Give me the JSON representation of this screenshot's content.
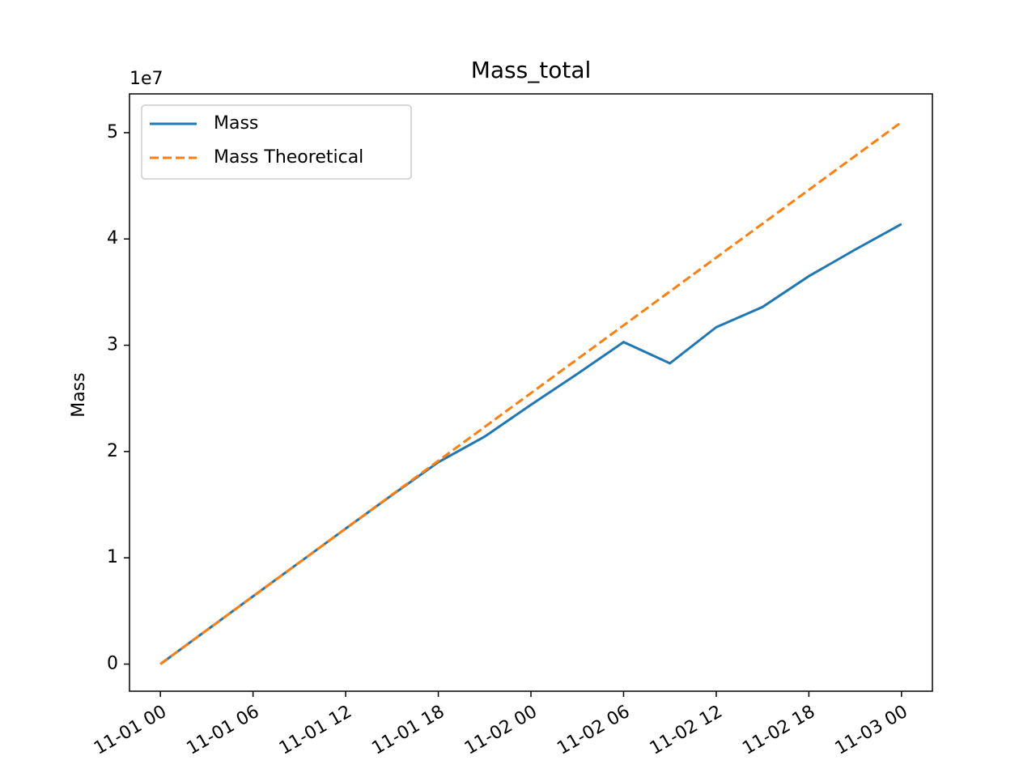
{
  "chart_data": {
    "type": "line",
    "title": "Mass_total",
    "y_label": "Mass",
    "y_offset_label": "1e7",
    "x": [
      "11-01 00",
      "11-01 03",
      "11-01 06",
      "11-01 09",
      "11-01 12",
      "11-01 15",
      "11-01 18",
      "11-01 21",
      "11-02 00",
      "11-02 03",
      "11-02 06",
      "11-02 09",
      "11-02 12",
      "11-02 15",
      "11-02 18",
      "11-02 21",
      "11-03 00"
    ],
    "series": [
      {
        "name": "Mass",
        "color": "#1f77b4",
        "style": "solid",
        "values": [
          0,
          3190000,
          6380000,
          9560000,
          12750000,
          15900000,
          19000000,
          21400000,
          24400000,
          27300000,
          30300000,
          28300000,
          31700000,
          33600000,
          36500000,
          39000000,
          41400000
        ]
      },
      {
        "name": "Mass Theoretical",
        "color": "#ff7f0e",
        "style": "dashed",
        "values": [
          0,
          3187500,
          6375000,
          9562500,
          12750000,
          15937500,
          19125000,
          22312500,
          25500000,
          28687500,
          31875000,
          35062500,
          38250000,
          41437500,
          44625000,
          47812500,
          51000000
        ]
      }
    ],
    "xlim": [
      "10-31 22",
      "11-03 02"
    ],
    "xticks": [
      "11-01 00",
      "11-01 06",
      "11-01 12",
      "11-01 18",
      "11-02 00",
      "11-02 06",
      "11-02 12",
      "11-02 18",
      "11-03 00"
    ],
    "ylim": [
      -2550000,
      53650000
    ],
    "yticks": [
      {
        "value": 0,
        "label": "0"
      },
      {
        "value": 10000000,
        "label": "1"
      },
      {
        "value": 20000000,
        "label": "2"
      },
      {
        "value": 30000000,
        "label": "3"
      },
      {
        "value": 40000000,
        "label": "4"
      },
      {
        "value": 50000000,
        "label": "5"
      }
    ],
    "legend": "upper left",
    "grid": false
  }
}
